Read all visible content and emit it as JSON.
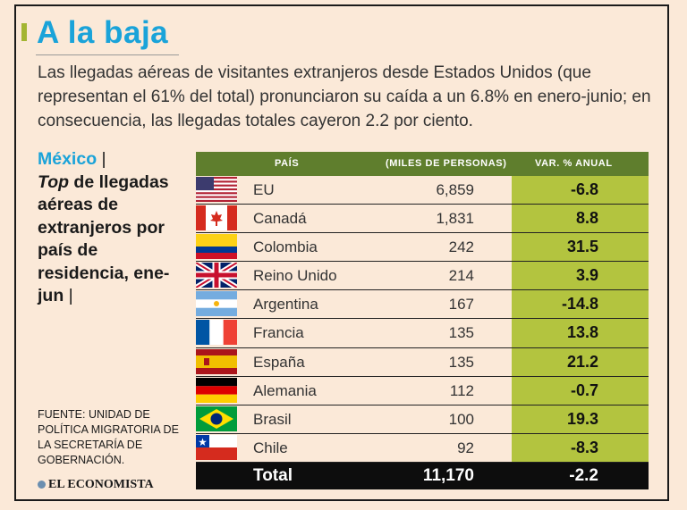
{
  "title": "A la baja",
  "subtitle": "Las llegadas aéreas de visitantes extranjeros desde Estados Unidos (que representan el 61% del total) pronunciaron su caída a un 6.8% en enero-junio; en consecuencia, las llegadas totales cayeron 2.2 por ciento.",
  "side": {
    "highlight": "México",
    "separator": " |",
    "top_word": "Top",
    "text": " de llegadas aéreas de extranjeros por país de residencia, ene-jun",
    "end_bar": " |"
  },
  "source": "FUENTE: UNIDAD DE POLÍTICA MIGRATORIA DE LA SECRETARÍA DE GOBERNACIÓN.",
  "logo": "EL ECONOMISTA",
  "colors": {
    "title": "#1aa3d9",
    "header_bg": "#5f7e2d",
    "var_bg": "#b3c43f",
    "accent": "#a3b532",
    "total_bg": "#0d0d0d"
  },
  "chart_data": {
    "type": "table",
    "columns": {
      "country": "PAÍS",
      "value": "(MILES DE PERSONAS)",
      "var": "VAR. % ANUAL"
    },
    "rows": [
      {
        "country": "EU",
        "value": "6,859",
        "var": "-6.8",
        "flag": "us-flag-icon"
      },
      {
        "country": "Canadá",
        "value": "1,831",
        "var": "8.8",
        "flag": "canada-flag-icon"
      },
      {
        "country": "Colombia",
        "value": "242",
        "var": "31.5",
        "flag": "colombia-flag-icon"
      },
      {
        "country": "Reino Unido",
        "value": "214",
        "var": "3.9",
        "flag": "uk-flag-icon"
      },
      {
        "country": "Argentina",
        "value": "167",
        "var": "-14.8",
        "flag": "argentina-flag-icon"
      },
      {
        "country": "Francia",
        "value": "135",
        "var": "13.8",
        "flag": "france-flag-icon"
      },
      {
        "country": "España",
        "value": "135",
        "var": "21.2",
        "flag": "spain-flag-icon"
      },
      {
        "country": "Alemania",
        "value": "112",
        "var": "-0.7",
        "flag": "germany-flag-icon"
      },
      {
        "country": "Brasil",
        "value": "100",
        "var": "19.3",
        "flag": "brazil-flag-icon"
      },
      {
        "country": "Chile",
        "value": "92",
        "var": "-8.3",
        "flag": "chile-flag-icon"
      }
    ],
    "total": {
      "country": "Total",
      "value": "11,170",
      "var": "-2.2"
    }
  }
}
